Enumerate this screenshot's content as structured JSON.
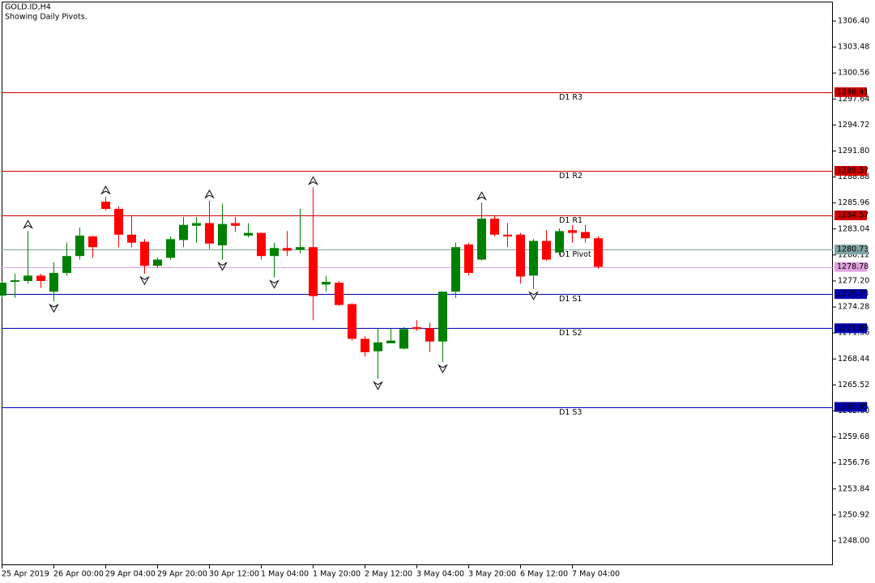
{
  "chart_data": {
    "type": "candlestick",
    "title": "GOLD.ID,H4",
    "subtitle": "Showing Daily Pivots.",
    "categories": [
      "25 Apr 2019",
      null,
      null,
      null,
      "26 Apr 00:00",
      null,
      null,
      null,
      "29 Apr 04:00",
      null,
      null,
      null,
      "29 Apr 20:00",
      null,
      null,
      null,
      "30 Apr 12:00",
      null,
      null,
      null,
      "1 May 04:00",
      null,
      null,
      null,
      "1 May 20:00",
      null,
      null,
      null,
      "2 May 12:00",
      null,
      null,
      null,
      "3 May 04:00",
      null,
      null,
      null,
      "3 May 20:00",
      null,
      null,
      null,
      "6 May 12:00",
      null,
      null,
      null,
      "7 May 04:00",
      null,
      null
    ],
    "open": [
      1275.55,
      1277.1,
      1277.2,
      1277.8,
      1276.0,
      1278.1,
      1280.0,
      1282.2,
      1286.1,
      1285.3,
      1282.4,
      1281.6,
      1278.9,
      1279.8,
      1281.8,
      1283.4,
      1283.7,
      1281.2,
      1283.7,
      1282.3,
      1282.6,
      1280.0,
      1280.9,
      1280.7,
      1281.0,
      1276.8,
      1277.0,
      1274.6,
      1270.7,
      1269.3,
      1270.2,
      1269.6,
      1272.0,
      1271.9,
      1270.4,
      1276.0,
      1281.3,
      1279.6,
      1284.2,
      1282.4,
      1282.4,
      1277.8,
      1281.7,
      1280.4,
      1282.9,
      1282.7,
      1282.0
    ],
    "high": [
      1277.2,
      1278.0,
      1282.8,
      1278.0,
      1279.3,
      1281.5,
      1283.2,
      1282.3,
      1286.65,
      1285.6,
      1284.6,
      1281.9,
      1279.8,
      1282.2,
      1284.4,
      1284.4,
      1286.2,
      1285.9,
      1284.4,
      1283.7,
      1282.6,
      1281.5,
      1282.8,
      1285.3,
      1287.7,
      1277.8,
      1277.2,
      1274.7,
      1271.0,
      1271.9,
      1271.9,
      1272.0,
      1272.8,
      1272.5,
      1276.0,
      1281.5,
      1281.5,
      1286.0,
      1284.6,
      1283.7,
      1282.6,
      1281.9,
      1282.9,
      1283.1,
      1283.5,
      1283.5,
      1282.2
    ],
    "low": [
      1275.3,
      1275.3,
      1276.9,
      1276.4,
      1274.9,
      1277.8,
      1279.6,
      1279.8,
      1285.11,
      1281.0,
      1281.0,
      1278.0,
      1278.7,
      1279.6,
      1281.0,
      1281.5,
      1280.8,
      1279.6,
      1282.7,
      1282.1,
      1279.6,
      1277.6,
      1280.0,
      1280.3,
      1272.8,
      1276.0,
      1274.4,
      1270.5,
      1268.7,
      1266.2,
      1270.2,
      1269.5,
      1271.6,
      1269.2,
      1268.1,
      1275.3,
      1277.8,
      1279.5,
      1282.2,
      1281.0,
      1276.9,
      1276.3,
      1279.5,
      1280.1,
      1281.5,
      1281.5,
      1278.6
    ],
    "close": [
      1277.0,
      1277.28,
      1277.8,
      1277.2,
      1278.1,
      1280.0,
      1282.3,
      1281.0,
      1285.29,
      1282.4,
      1281.5,
      1278.9,
      1279.6,
      1281.9,
      1283.5,
      1283.7,
      1281.4,
      1283.6,
      1283.4,
      1282.6,
      1280.0,
      1280.9,
      1280.6,
      1281.0,
      1275.5,
      1277.1,
      1274.5,
      1270.7,
      1269.2,
      1270.3,
      1270.5,
      1271.8,
      1271.8,
      1270.4,
      1276.0,
      1281.0,
      1278.1,
      1284.2,
      1282.4,
      1282.2,
      1277.7,
      1281.7,
      1279.6,
      1282.8,
      1282.6,
      1282.0,
      1278.78
    ],
    "up_color": "#008000",
    "down_color": "#ff0000",
    "fractals": {
      "up": [
        2,
        8,
        16,
        24,
        37
      ],
      "down": [
        4,
        11,
        17,
        21,
        29,
        34,
        41
      ]
    },
    "ylim": [
      1245.27,
      1308.58
    ],
    "yticks": [
      {
        "value": 1306.4,
        "label": "1306.40"
      },
      1303.48,
      1300.56,
      1297.64,
      1294.72,
      {
        "value": 1291.8,
        "label": "1291.80"
      },
      1288.88,
      1285.96,
      1283.04,
      1280.12,
      {
        "value": 1277.2,
        "label": "1277.20"
      },
      1274.28,
      1271.36,
      1268.44,
      1265.52,
      {
        "value": 1262.6,
        "label": "1262.60"
      },
      1259.68,
      1256.76,
      1253.84,
      1250.92,
      {
        "value": 1248,
        "label": "1248.00"
      }
    ],
    "levels": [
      {
        "name": "D1 R3",
        "value": 1298.41,
        "color": "#d00000"
      },
      {
        "name": "D1 R2",
        "value": 1289.57,
        "color": "#d00000"
      },
      {
        "name": "D1 R1",
        "value": 1284.57,
        "color": "#d00000"
      },
      {
        "name": "D1 Pivot",
        "value": 1280.73,
        "color": "#7fa3a3"
      },
      {
        "name": "D1 S1",
        "value": 1275.73,
        "color": "#0000b0"
      },
      {
        "name": "D1 S2",
        "value": 1271.89,
        "color": "#0000b0"
      },
      {
        "name": "D1 S3",
        "value": 1263.05,
        "color": "#0000b0"
      }
    ],
    "current_price": {
      "value": 1278.78,
      "color": "#e0a0e0"
    }
  }
}
